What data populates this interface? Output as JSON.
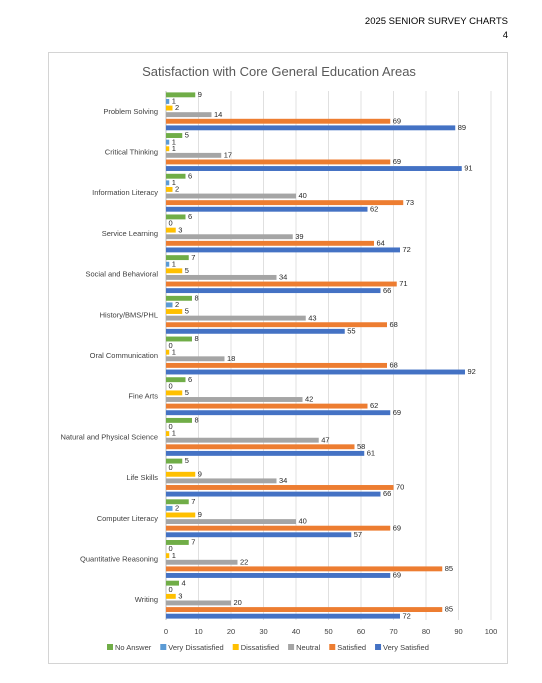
{
  "header": {
    "line1": "2025 SENIOR SURVEY CHARTS",
    "line2": "4"
  },
  "chart_data": {
    "type": "bar",
    "orientation": "horizontal",
    "title": "Satisfaction with Core General Education Areas",
    "categories": [
      "Problem Solving",
      "Critical Thinking",
      "Information Literacy",
      "Service Learning",
      "Social and Behavioral",
      "History/BMS/PHL",
      "Oral Communication",
      "Fine Arts",
      "Natural and Physical Science",
      "Life Skills",
      "Computer Literacy",
      "Quantitative Reasoning",
      "Writing"
    ],
    "series": [
      {
        "name": "No Answer",
        "color": "#70AD47",
        "values": [
          9,
          5,
          6,
          6,
          7,
          8,
          8,
          6,
          8,
          5,
          7,
          7,
          4
        ]
      },
      {
        "name": "Very Dissatisfied",
        "color": "#5B9BD5",
        "values": [
          1,
          1,
          1,
          0,
          1,
          2,
          0,
          0,
          0,
          0,
          2,
          0,
          0
        ]
      },
      {
        "name": "Dissatisfied",
        "color": "#FFC000",
        "values": [
          2,
          1,
          2,
          3,
          5,
          5,
          1,
          5,
          1,
          9,
          9,
          1,
          3
        ]
      },
      {
        "name": "Neutral",
        "color": "#A5A5A5",
        "values": [
          14,
          17,
          40,
          39,
          34,
          43,
          18,
          42,
          47,
          34,
          40,
          22,
          20
        ]
      },
      {
        "name": "Satisfied",
        "color": "#ED7D31",
        "values": [
          69,
          69,
          73,
          64,
          71,
          68,
          68,
          62,
          58,
          70,
          69,
          85,
          85
        ]
      },
      {
        "name": "Very Satisfied",
        "color": "#4472C4",
        "values": [
          89,
          91,
          62,
          72,
          66,
          55,
          92,
          69,
          61,
          66,
          57,
          69,
          72
        ]
      }
    ],
    "xlim": [
      0,
      100
    ],
    "xticks": [
      "0",
      "10",
      "20",
      "30",
      "40",
      "50",
      "60",
      "70",
      "80",
      "90",
      "100"
    ],
    "grid": true,
    "legend_position": "bottom"
  }
}
